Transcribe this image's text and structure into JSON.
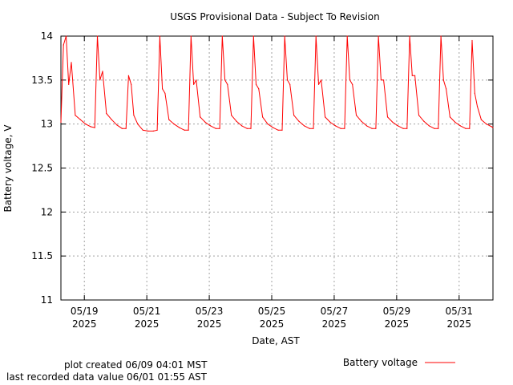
{
  "chart_data": {
    "type": "line",
    "title": "USGS Provisional Data - Subject To Revision",
    "xlabel": "Date, AST",
    "ylabel": "Battery voltage, V",
    "ylim": [
      11,
      14
    ],
    "yticks": [
      "11",
      "11.5",
      "12",
      "12.5",
      "13",
      "13.5",
      "14"
    ],
    "xlim": [
      "2025-05-18 06:00",
      "2025-06-01 02:00"
    ],
    "xticks": [
      {
        "date": "2025-05-19",
        "label": "05/19",
        "year": "2025"
      },
      {
        "date": "2025-05-21",
        "label": "05/21",
        "year": "2025"
      },
      {
        "date": "2025-05-23",
        "label": "05/23",
        "year": "2025"
      },
      {
        "date": "2025-05-25",
        "label": "05/25",
        "year": "2025"
      },
      {
        "date": "2025-05-27",
        "label": "05/27",
        "year": "2025"
      },
      {
        "date": "2025-05-29",
        "label": "05/29",
        "year": "2025"
      },
      {
        "date": "2025-05-31",
        "label": "05/31",
        "year": "2025"
      }
    ],
    "grid": true,
    "legend_position": "bottom-right",
    "series": [
      {
        "name": "Battery voltage",
        "color": "#ff0000",
        "x": [
          "2025-05-18 06:00",
          "2025-05-18 08:00",
          "2025-05-18 10:00",
          "2025-05-18 12:00",
          "2025-05-18 14:00",
          "2025-05-18 17:00",
          "2025-05-18 21:00",
          "2025-05-19 01:00",
          "2025-05-19 05:00",
          "2025-05-19 08:00",
          "2025-05-19 10:00",
          "2025-05-19 12:00",
          "2025-05-19 14:00",
          "2025-05-19 17:00",
          "2025-05-19 21:00",
          "2025-05-20 01:00",
          "2025-05-20 05:00",
          "2025-05-20 08:00",
          "2025-05-20 10:00",
          "2025-05-20 12:00",
          "2025-05-20 14:00",
          "2025-05-20 17:00",
          "2025-05-20 21:00",
          "2025-05-21 01:00",
          "2025-05-21 05:00",
          "2025-05-21 08:00",
          "2025-05-21 10:00",
          "2025-05-21 12:00",
          "2025-05-21 14:00",
          "2025-05-21 17:00",
          "2025-05-21 21:00",
          "2025-05-22 01:00",
          "2025-05-22 05:00",
          "2025-05-22 08:00",
          "2025-05-22 10:00",
          "2025-05-22 12:00",
          "2025-05-22 14:00",
          "2025-05-22 17:00",
          "2025-05-22 21:00",
          "2025-05-23 01:00",
          "2025-05-23 05:00",
          "2025-05-23 08:00",
          "2025-05-23 10:00",
          "2025-05-23 12:00",
          "2025-05-23 14:00",
          "2025-05-23 17:00",
          "2025-05-23 21:00",
          "2025-05-24 01:00",
          "2025-05-24 05:00",
          "2025-05-24 08:00",
          "2025-05-24 10:00",
          "2025-05-24 12:00",
          "2025-05-24 14:00",
          "2025-05-24 17:00",
          "2025-05-24 21:00",
          "2025-05-25 01:00",
          "2025-05-25 05:00",
          "2025-05-25 08:00",
          "2025-05-25 10:00",
          "2025-05-25 12:00",
          "2025-05-25 14:00",
          "2025-05-25 17:00",
          "2025-05-25 21:00",
          "2025-05-26 01:00",
          "2025-05-26 05:00",
          "2025-05-26 08:00",
          "2025-05-26 10:00",
          "2025-05-26 12:00",
          "2025-05-26 14:00",
          "2025-05-26 17:00",
          "2025-05-26 21:00",
          "2025-05-27 01:00",
          "2025-05-27 05:00",
          "2025-05-27 08:00",
          "2025-05-27 10:00",
          "2025-05-27 12:00",
          "2025-05-27 14:00",
          "2025-05-27 17:00",
          "2025-05-27 21:00",
          "2025-05-28 01:00",
          "2025-05-28 05:00",
          "2025-05-28 08:00",
          "2025-05-28 10:00",
          "2025-05-28 12:00",
          "2025-05-28 14:00",
          "2025-05-28 17:00",
          "2025-05-28 21:00",
          "2025-05-29 01:00",
          "2025-05-29 05:00",
          "2025-05-29 08:00",
          "2025-05-29 10:00",
          "2025-05-29 12:00",
          "2025-05-29 14:00",
          "2025-05-29 17:00",
          "2025-05-29 21:00",
          "2025-05-30 01:00",
          "2025-05-30 05:00",
          "2025-05-30 08:00",
          "2025-05-30 10:00",
          "2025-05-30 12:00",
          "2025-05-30 14:00",
          "2025-05-30 17:00",
          "2025-05-30 21:00",
          "2025-05-31 01:00",
          "2025-05-31 05:00",
          "2025-05-31 08:00",
          "2025-05-31 10:00",
          "2025-05-31 12:00",
          "2025-05-31 14:00",
          "2025-05-31 17:00",
          "2025-05-31 21:00",
          "2025-06-01 01:00",
          "2025-06-01 01:55"
        ],
        "y": [
          13.02,
          13.9,
          14.0,
          13.45,
          13.7,
          13.1,
          13.05,
          13.0,
          12.97,
          12.96,
          14.0,
          13.5,
          13.6,
          13.12,
          13.05,
          12.99,
          12.95,
          12.95,
          13.55,
          13.45,
          13.1,
          13.0,
          12.93,
          12.92,
          12.92,
          12.93,
          14.0,
          13.4,
          13.35,
          13.05,
          13.0,
          12.96,
          12.93,
          12.93,
          14.0,
          13.45,
          13.5,
          13.08,
          13.02,
          12.98,
          12.95,
          12.95,
          14.0,
          13.5,
          13.45,
          13.1,
          13.03,
          12.98,
          12.95,
          12.95,
          14.0,
          13.45,
          13.4,
          13.08,
          13.0,
          12.96,
          12.93,
          12.93,
          14.0,
          13.5,
          13.45,
          13.1,
          13.03,
          12.98,
          12.95,
          12.95,
          14.0,
          13.45,
          13.5,
          13.08,
          13.02,
          12.98,
          12.95,
          12.95,
          14.0,
          13.5,
          13.45,
          13.1,
          13.03,
          12.98,
          12.95,
          12.95,
          14.0,
          13.5,
          13.5,
          13.08,
          13.02,
          12.98,
          12.95,
          12.95,
          14.0,
          13.55,
          13.55,
          13.1,
          13.03,
          12.98,
          12.95,
          12.95,
          14.0,
          13.5,
          13.4,
          13.08,
          13.02,
          12.98,
          12.95,
          12.95,
          13.95,
          13.35,
          13.2,
          13.05,
          13.0,
          12.97,
          12.96
        ]
      }
    ]
  },
  "legend": {
    "label": "Battery voltage",
    "color": "#ff0000"
  },
  "footer": {
    "created": "plot created 06/09 04:01 MST",
    "last_value": "last recorded data value 06/01 01:55 AST"
  }
}
